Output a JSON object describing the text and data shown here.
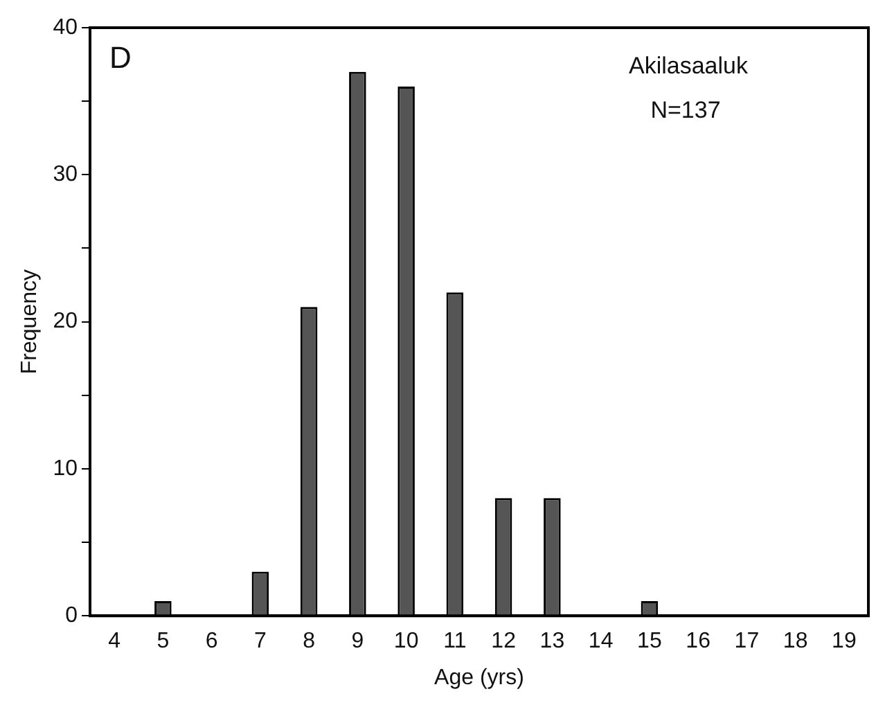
{
  "chart_data": {
    "type": "bar",
    "xlabel": "Age (yrs)",
    "ylabel": "Frequency",
    "categories": [
      "4",
      "5",
      "6",
      "7",
      "8",
      "9",
      "10",
      "11",
      "12",
      "13",
      "14",
      "15",
      "16",
      "17",
      "18",
      "19"
    ],
    "values": [
      0,
      1,
      0,
      3,
      21,
      37,
      36,
      22,
      8,
      8,
      0,
      1,
      0,
      0,
      0,
      0
    ],
    "color": "#555555",
    "ylim": [
      0,
      40
    ],
    "yticks": [
      0,
      {
        "value": 5,
        "label": null
      },
      10,
      {
        "value": 15,
        "label": null
      },
      20,
      {
        "value": 25,
        "label": null
      },
      30,
      {
        "value": 35,
        "label": null
      },
      40
    ],
    "grid": false,
    "legend": false,
    "annotations": [
      "D",
      "Akilasaaluk",
      "N=137"
    ]
  }
}
